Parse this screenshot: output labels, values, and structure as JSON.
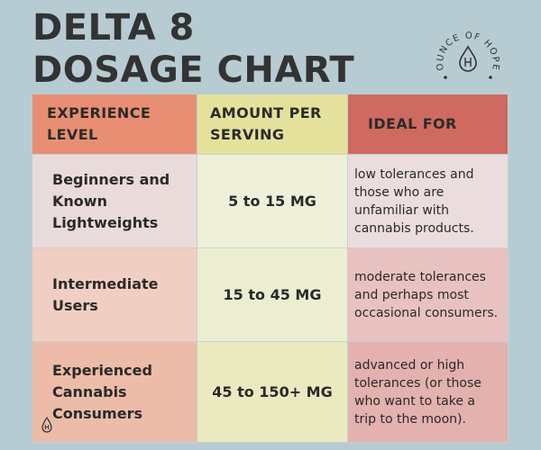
{
  "title": {
    "line1": "DELTA 8",
    "line2": "DOSAGE CHART"
  },
  "logo": {
    "text": "OUNCE OF HOPE",
    "icon": "drop-h-icon"
  },
  "headers": [
    "EXPERIENCE LEVEL",
    "AMOUNT PER SERVING",
    "IDEAL FOR"
  ],
  "rows": [
    {
      "level": "Beginners and Known Lightweights",
      "amount": "5 to 15 MG",
      "ideal": "low tolerances and those who are unfamiliar with cannabis products."
    },
    {
      "level": "Intermediate Users",
      "amount": "15 to 45 MG",
      "ideal": "moderate tolerances and perhaps most occasional consumers."
    },
    {
      "level": "Experienced Cannabis Consumers",
      "amount": "45 to 150+ MG",
      "ideal": "advanced or high tolerances (or those who want to take a trip to the moon)."
    }
  ],
  "colors": {
    "background": "#b7ccd2",
    "header_experience": "#e88f73",
    "header_amount": "#e4e19c",
    "header_ideal": "#cf6a60"
  }
}
